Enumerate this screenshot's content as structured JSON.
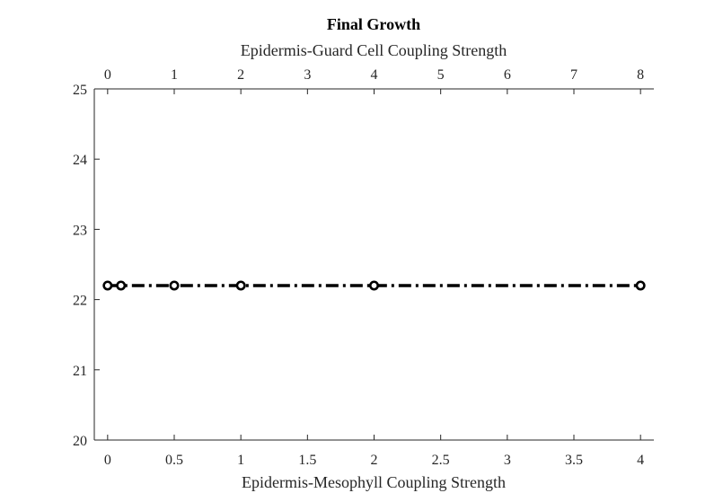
{
  "chart_data": {
    "type": "line",
    "title": "Final Growth",
    "xlabel": "Epidermis-Mesophyll Coupling Strength",
    "x2label": "Epidermis-Guard Cell Coupling Strength",
    "ylabel": "",
    "xlim": [
      -0.1,
      4.1
    ],
    "ylim": [
      20,
      25
    ],
    "xticks": [
      "0",
      "0.5",
      "1",
      "1.5",
      "2",
      "2.5",
      "3",
      "3.5",
      "4"
    ],
    "xtick_values": [
      0,
      0.5,
      1,
      1.5,
      2,
      2.5,
      3,
      3.5,
      4
    ],
    "x2ticks": [
      "0",
      "1",
      "2",
      "3",
      "4",
      "5",
      "6",
      "7",
      "8"
    ],
    "yticks": [
      "20",
      "21",
      "22",
      "23",
      "24",
      "25"
    ],
    "ytick_values": [
      20,
      21,
      22,
      23,
      24,
      25
    ],
    "grid": false,
    "series": [
      {
        "x": [
          0,
          0.1,
          0.5,
          1,
          2,
          4
        ],
        "y": [
          22.2,
          22.2,
          22.2,
          22.2,
          22.2,
          22.2
        ],
        "line_style": "dash-dot",
        "color": "#000000"
      }
    ]
  }
}
